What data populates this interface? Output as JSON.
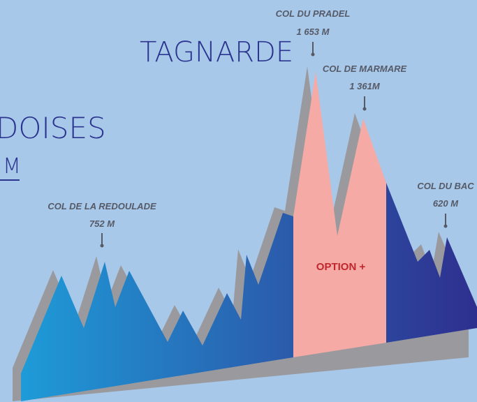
{
  "title_lines": [
    "TAGNARDE",
    "DOISES",
    "M"
  ],
  "peaks": [
    {
      "name": "COL DE LA REDOULADE",
      "altitude": "752 M"
    },
    {
      "name": "COL DU PRADEL",
      "altitude": "1 653 M"
    },
    {
      "name": "COL DE MARMARE",
      "altitude": "1 361M"
    },
    {
      "name": "COL DU BAC",
      "altitude": "620 M"
    }
  ],
  "option_label": "OPTION +"
}
